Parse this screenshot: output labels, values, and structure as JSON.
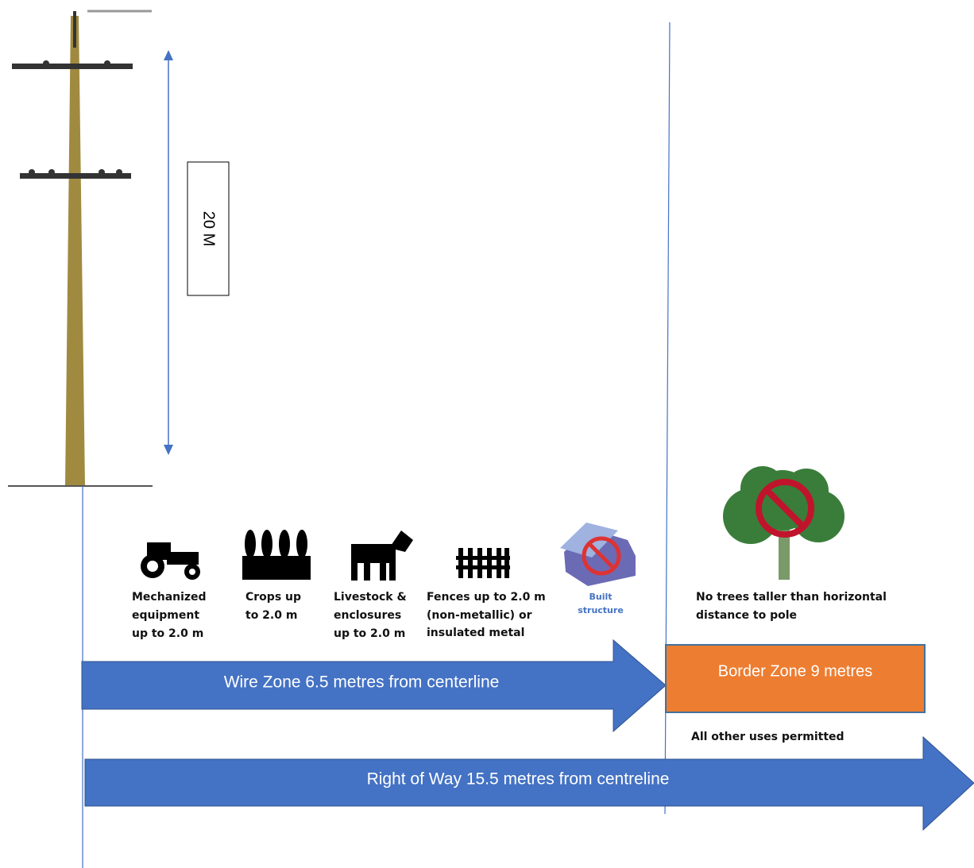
{
  "height_label": "20 M",
  "wire_zone_uses": [
    {
      "lines": [
        "Mechanized",
        "equipment",
        "up to 2.0 m"
      ]
    },
    {
      "lines": [
        "Crops up",
        "to 2.0 m"
      ]
    },
    {
      "lines": [
        "Livestock &",
        "enclosures",
        "up to 2.0 m"
      ]
    },
    {
      "lines": [
        "Fences up to 2.0 m",
        "(non-metallic) or",
        "insulated metal"
      ]
    },
    {
      "lines": [
        "Built",
        "structure"
      ]
    }
  ],
  "tree_note": {
    "lines": [
      "No trees taller than horizontal",
      "distance to pole"
    ]
  },
  "wire_zone": {
    "label": "Wire Zone 6.5 metres from centerline"
  },
  "border_zone": {
    "label": "Border Zone 9 metres",
    "note": "All other uses permitted"
  },
  "right_of_way": {
    "label": "Right of Way 15.5 metres from centreline"
  }
}
